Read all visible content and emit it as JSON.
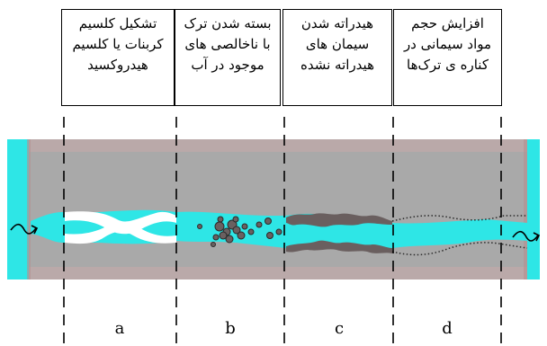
{
  "boxes": [
    {
      "id": "a",
      "lines": [
        "تشکیل کلسیم",
        "کربنات یا کلسیم",
        "هیدروکسید"
      ]
    },
    {
      "id": "b",
      "lines": [
        "بسته شدن ترک",
        "با ناخالصی های",
        "موجود در آب"
      ]
    },
    {
      "id": "c",
      "lines": [
        "هیدراته شدن",
        "سیمان های",
        "هیدراته نشده"
      ]
    },
    {
      "id": "d",
      "lines": [
        "افزایش حجم",
        "مواد سیمانی در",
        "کناره ی ترک‌ها"
      ]
    }
  ],
  "segments": [
    "a",
    "b",
    "c",
    "d"
  ],
  "colors": {
    "concrete": "#a9a9a9",
    "concrete_edge": "#c9a7a7",
    "water": "#2ee6e6",
    "calcite": "#ffffff",
    "hydration": "#6a5f5f",
    "line": "#000000"
  },
  "icons": [
    "water-inflow-arrow-icon",
    "water-outflow-arrow-icon"
  ]
}
